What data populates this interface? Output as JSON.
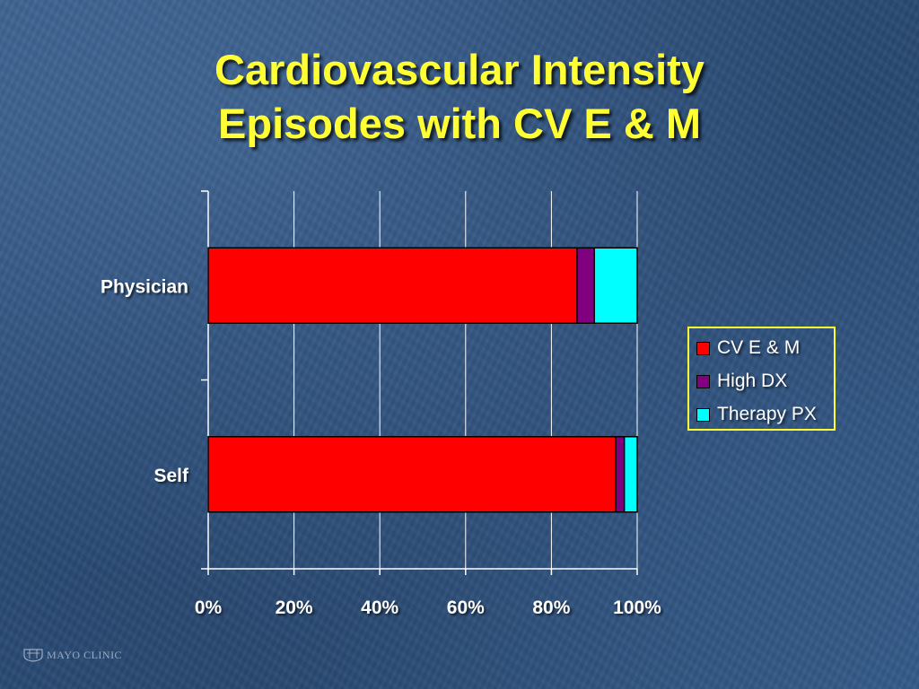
{
  "slide": {
    "title_line1": "Cardiovascular Intensity",
    "title_line2": "Episodes with CV E & M"
  },
  "legend": {
    "items": [
      {
        "label": "CV E & M",
        "color": "#ff0000"
      },
      {
        "label": "High DX",
        "color": "#800080"
      },
      {
        "label": "Therapy PX",
        "color": "#00ffff"
      }
    ]
  },
  "logo": {
    "text": "MAYO CLINIC"
  },
  "chart_data": {
    "type": "bar",
    "orientation": "horizontal",
    "stacked": true,
    "percent_stacked": true,
    "categories": [
      "Physician",
      "Self"
    ],
    "series": [
      {
        "name": "CV E & M",
        "color": "#ff0000",
        "values": [
          86,
          95
        ]
      },
      {
        "name": "High DX",
        "color": "#800080",
        "values": [
          4,
          2
        ]
      },
      {
        "name": "Therapy PX",
        "color": "#00ffff",
        "values": [
          10,
          3
        ]
      }
    ],
    "x_ticks": [
      "0%",
      "20%",
      "40%",
      "60%",
      "80%",
      "100%"
    ],
    "xlim": [
      0,
      100
    ],
    "grid": true,
    "legend_position": "right"
  }
}
